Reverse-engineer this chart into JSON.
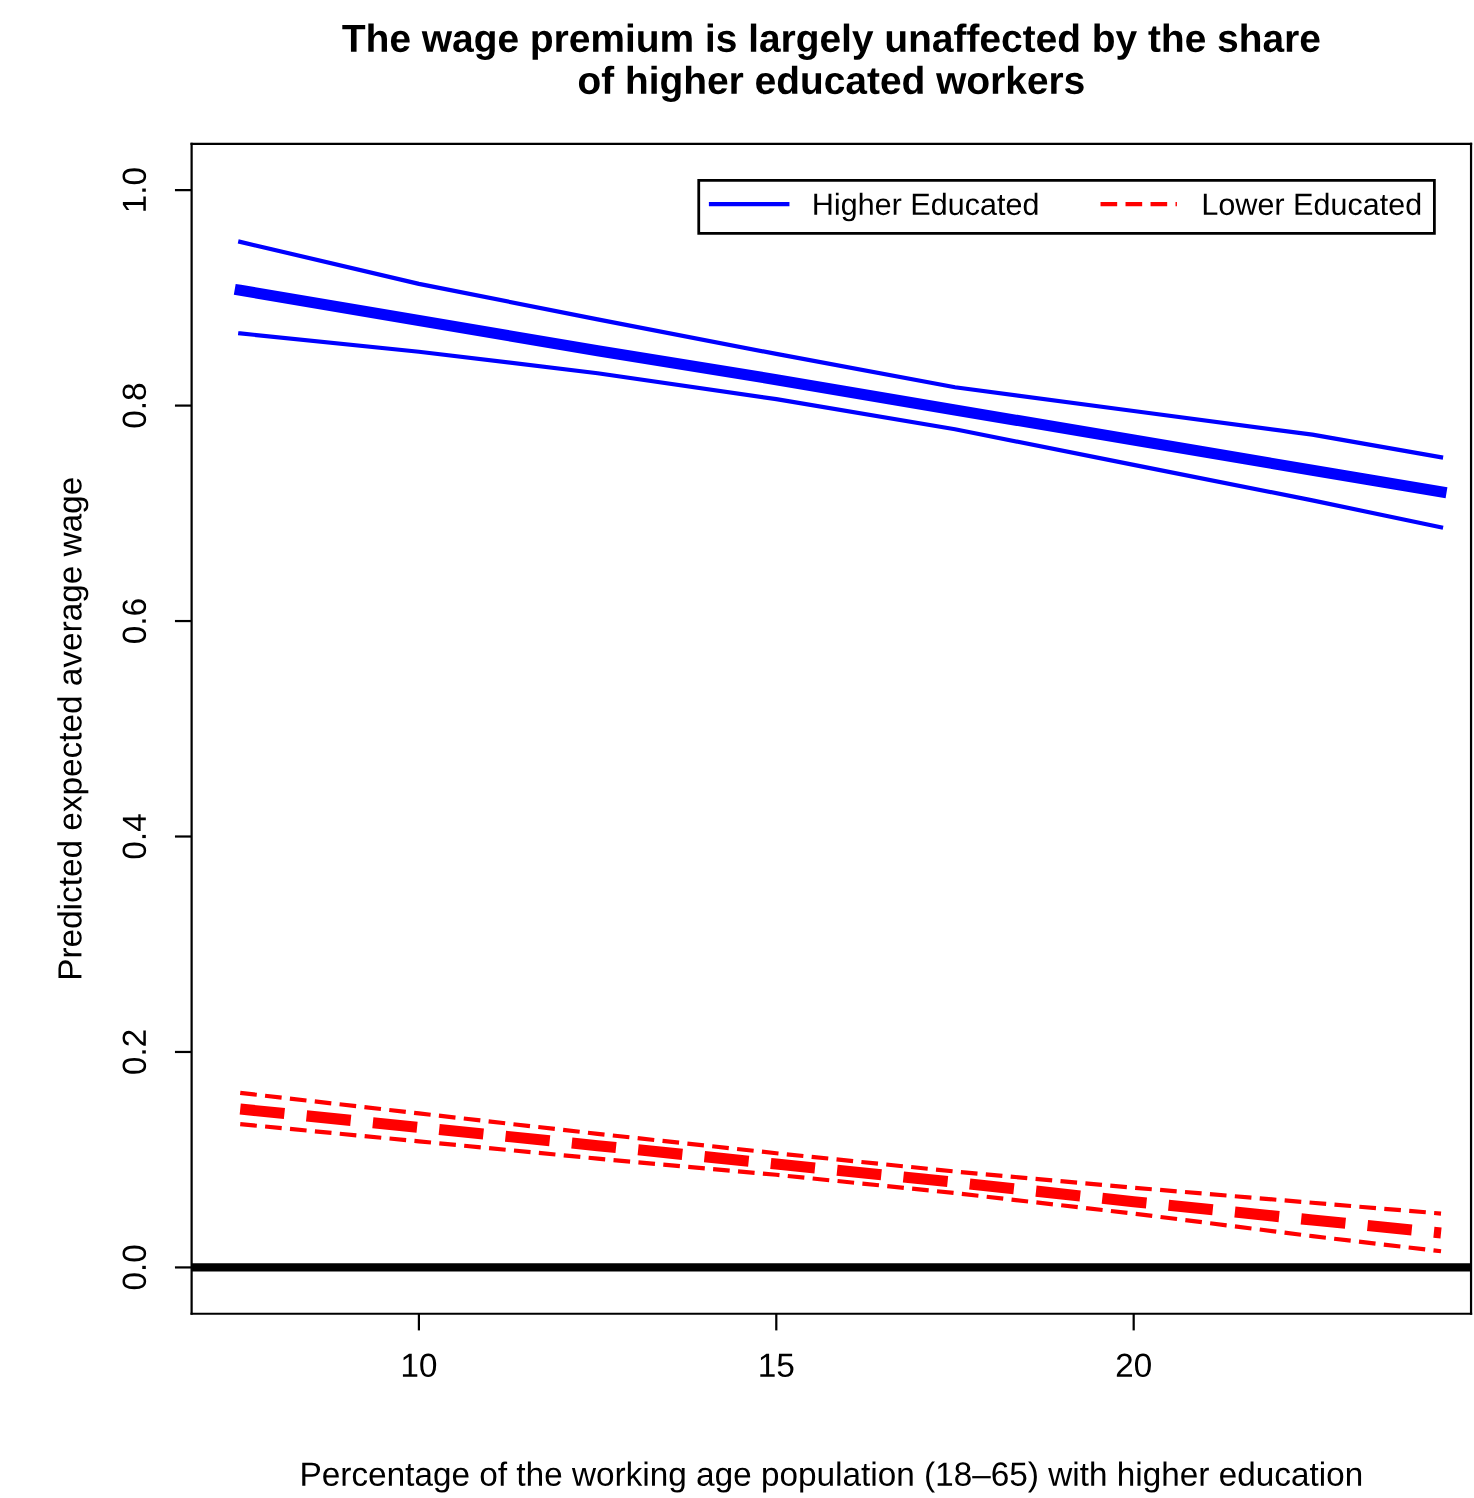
{
  "chart_data": {
    "type": "line",
    "title": "The wage premium is largely unaffected by the share\nof higher educated workers",
    "xlabel": "Percentage of the working age population (18–65) with higher education",
    "ylabel": "Predicted expected average wage",
    "x": [
      7.5,
      10,
      12.5,
      15,
      17.5,
      20,
      22.5,
      24.3
    ],
    "series": [
      {
        "name": "Higher Educated",
        "color": "#0000ff",
        "line_style": "solid",
        "values": [
          0.907,
          0.879,
          0.851,
          0.824,
          0.796,
          0.768,
          0.74,
          0.72
        ]
      },
      {
        "color": "#0000ff",
        "line_style": "solid",
        "values": [
          0.952,
          0.913,
          0.88,
          0.848,
          0.817,
          0.795,
          0.773,
          0.752
        ]
      },
      {
        "color": "#0000ff",
        "line_style": "solid",
        "values": [
          0.867,
          0.85,
          0.83,
          0.806,
          0.778,
          0.745,
          0.712,
          0.687
        ]
      },
      {
        "name": "Lower Educated",
        "color": "#ff0000",
        "line_style": "dashed",
        "values": [
          0.147,
          0.13,
          0.113,
          0.096,
          0.079,
          0.061,
          0.044,
          0.032
        ]
      },
      {
        "color": "#ff0000",
        "line_style": "dashed",
        "values": [
          0.162,
          0.143,
          0.124,
          0.106,
          0.089,
          0.074,
          0.06,
          0.05
        ]
      },
      {
        "color": "#ff0000",
        "line_style": "dashed",
        "values": [
          0.133,
          0.117,
          0.101,
          0.086,
          0.069,
          0.05,
          0.029,
          0.015
        ]
      }
    ],
    "ref_lines": [
      {
        "axis": "y",
        "value": 0,
        "color": "#000000",
        "line_style": "solid"
      }
    ],
    "xlim": [
      6.82,
      24.72
    ],
    "ylim": [
      -0.043,
      1.043
    ],
    "xticks": [
      10,
      15,
      20
    ],
    "yticks": [
      {
        "value": 0,
        "label": "0.0"
      },
      {
        "value": 0.2,
        "label": "0.2"
      },
      {
        "value": 0.4,
        "label": "0.4"
      },
      {
        "value": 0.6,
        "label": "0.6"
      },
      {
        "value": 0.8,
        "label": "0.8"
      },
      {
        "value": 1.0,
        "label": "1.0"
      }
    ],
    "grid": false,
    "legend": "top right",
    "marker": "none"
  }
}
